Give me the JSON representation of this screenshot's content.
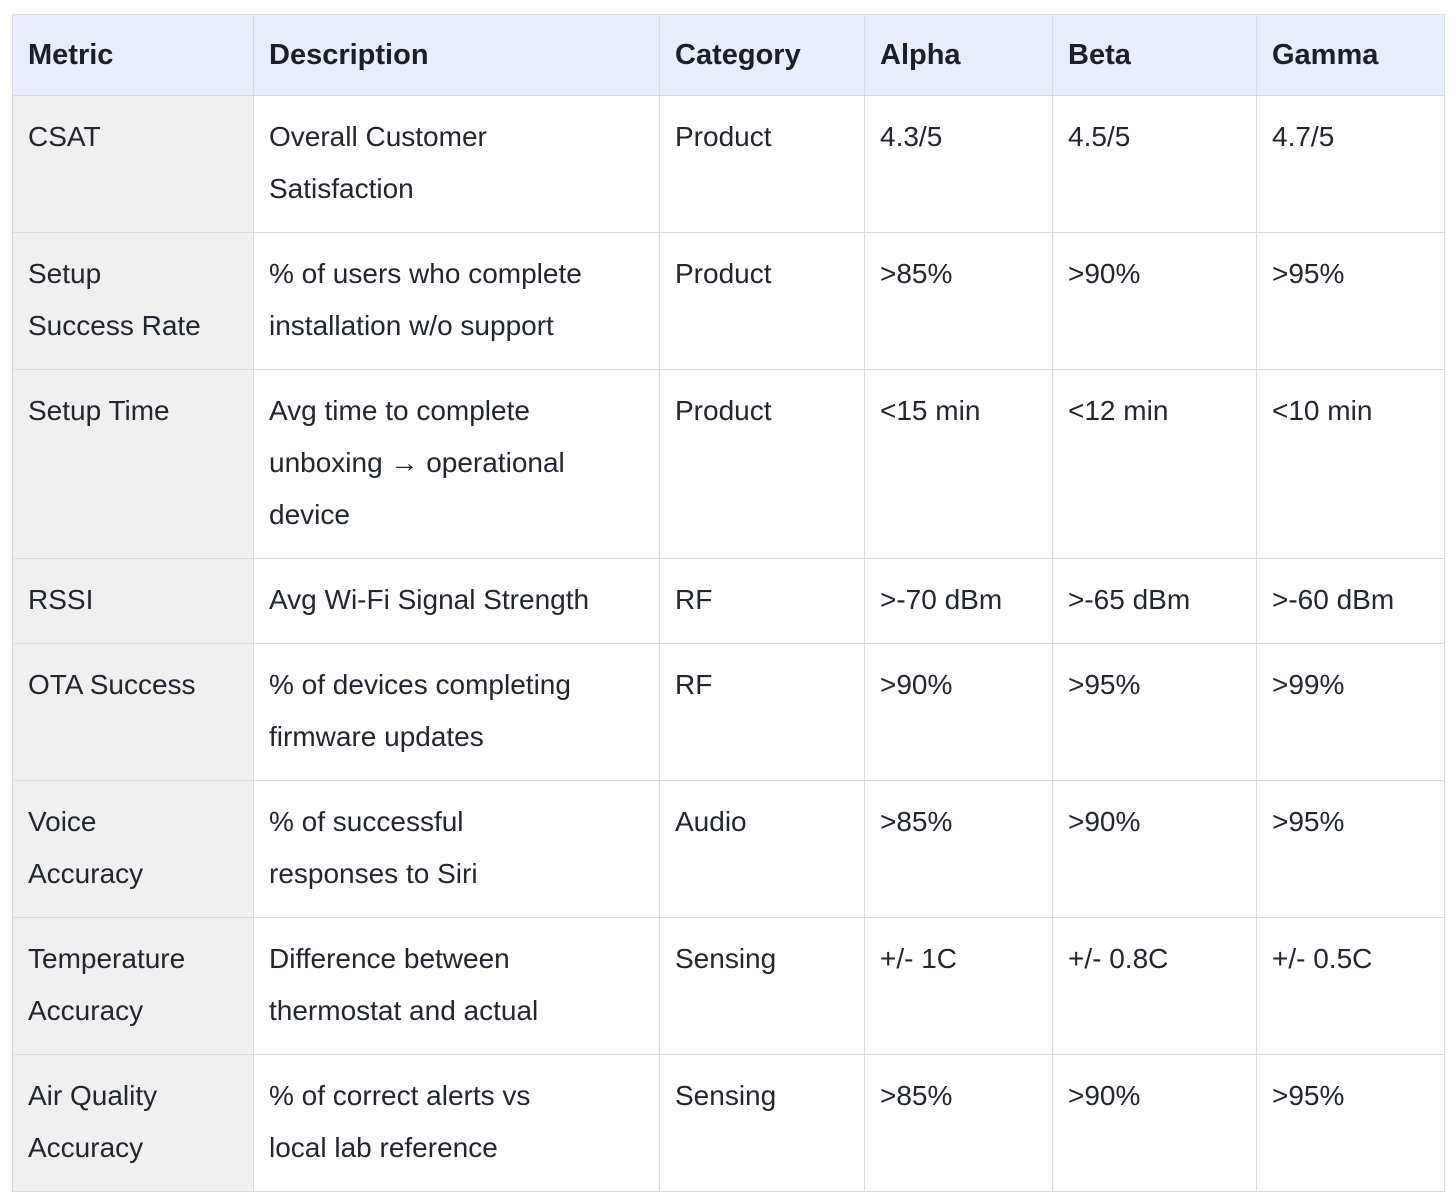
{
  "colors": {
    "page_background": "#ffffff",
    "header_background": "#e8eefb",
    "metric_column_background": "#f0f0f1",
    "border": "#d9dbe0",
    "text": "#22262e"
  },
  "table": {
    "columns": [
      "Metric",
      "Description",
      "Category",
      "Alpha",
      "Beta",
      "Gamma"
    ],
    "rows": [
      {
        "metric": "CSAT",
        "description": "Overall Customer\nSatisfaction",
        "category": "Product",
        "alpha": "4.3/5",
        "beta": "4.5/5",
        "gamma": "4.7/5"
      },
      {
        "metric": "Setup\nSuccess Rate",
        "description": "% of users who complete\ninstallation w/o support",
        "category": "Product",
        "alpha": ">85%",
        "beta": ">90%",
        "gamma": ">95%"
      },
      {
        "metric": "Setup Time",
        "description": "Avg time to complete\nunboxing → operational\ndevice",
        "category": "Product",
        "alpha": "<15 min",
        "beta": "<12 min",
        "gamma": "<10 min"
      },
      {
        "metric": "RSSI",
        "description": "Avg Wi-Fi Signal Strength",
        "category": "RF",
        "alpha": ">-70 dBm",
        "beta": ">-65 dBm",
        "gamma": ">-60 dBm"
      },
      {
        "metric": "OTA Success",
        "description": "% of devices completing\nfirmware updates",
        "category": "RF",
        "alpha": ">90%",
        "beta": ">95%",
        "gamma": ">99%"
      },
      {
        "metric": "Voice\nAccuracy",
        "description": "% of successful\nresponses to Siri",
        "category": "Audio",
        "alpha": ">85%",
        "beta": ">90%",
        "gamma": ">95%"
      },
      {
        "metric": "Temperature\nAccuracy",
        "description": "Difference between\nthermostat and actual",
        "category": "Sensing",
        "alpha": "+/- 1C",
        "beta": "+/- 0.8C",
        "gamma": "+/- 0.5C"
      },
      {
        "metric": "Air Quality\nAccuracy",
        "description": "% of correct alerts vs\nlocal lab reference",
        "category": "Sensing",
        "alpha": ">85%",
        "beta": ">90%",
        "gamma": ">95%"
      }
    ]
  },
  "chart_data": {
    "type": "table",
    "title": "",
    "columns": [
      "Metric",
      "Description",
      "Category",
      "Alpha",
      "Beta",
      "Gamma"
    ],
    "rows": [
      [
        "CSAT",
        "Overall Customer Satisfaction",
        "Product",
        "4.3/5",
        "4.5/5",
        "4.7/5"
      ],
      [
        "Setup Success Rate",
        "% of users who complete installation w/o support",
        "Product",
        ">85%",
        ">90%",
        ">95%"
      ],
      [
        "Setup Time",
        "Avg time to complete unboxing → operational device",
        "Product",
        "<15 min",
        "<12 min",
        "<10 min"
      ],
      [
        "RSSI",
        "Avg Wi-Fi Signal Strength",
        "RF",
        ">-70 dBm",
        ">-65 dBm",
        ">-60 dBm"
      ],
      [
        "OTA Success",
        "% of devices completing firmware updates",
        "RF",
        ">90%",
        ">95%",
        ">99%"
      ],
      [
        "Voice Accuracy",
        "% of successful responses to Siri",
        "Audio",
        ">85%",
        ">90%",
        ">95%"
      ],
      [
        "Temperature Accuracy",
        "Difference between thermostat and actual",
        "Sensing",
        "+/- 1C",
        "+/- 0.8C",
        "+/- 0.5C"
      ],
      [
        "Air Quality Accuracy",
        "% of correct alerts vs local lab reference",
        "Sensing",
        ">85%",
        ">90%",
        ">95%"
      ]
    ]
  }
}
